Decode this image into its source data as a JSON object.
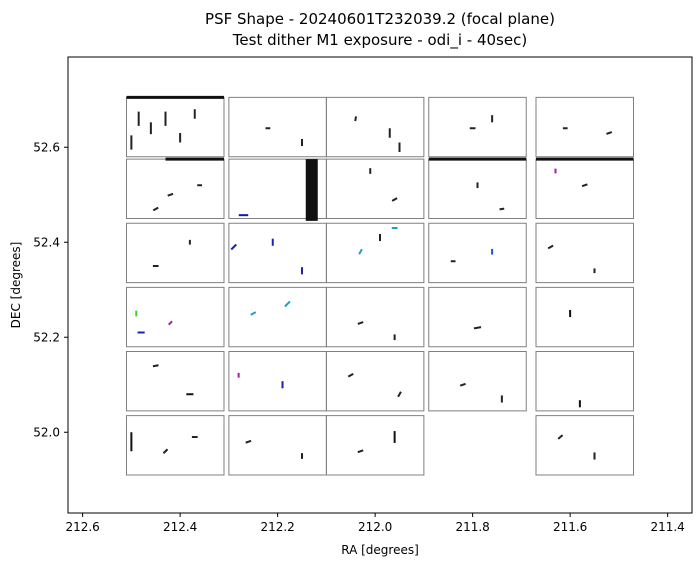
{
  "chart_data": {
    "type": "scatter",
    "title_line1": "PSF Shape - 20240601T232039.2 (focal plane)",
    "title_line2": "Test dither M1 exposure - odi_i - 40sec)",
    "xlabel": "RA [degrees]",
    "ylabel": "DEC [degrees]",
    "xlim": [
      212.63,
      211.35
    ],
    "ylim": [
      51.83,
      52.79
    ],
    "x_inverted": true,
    "grid": false,
    "x_ticks": [
      212.6,
      212.4,
      212.2,
      212.0,
      211.8,
      211.6,
      211.4
    ],
    "x_tick_labels": [
      "212.6",
      "212.4",
      "212.2",
      "212.0",
      "211.8",
      "211.6",
      "211.4"
    ],
    "y_ticks": [
      52.0,
      52.2,
      52.4,
      52.6
    ],
    "y_tick_labels": [
      "52.0",
      "52.2",
      "52.4",
      "52.6"
    ],
    "marker_style": "short line segments (PSF ellipticity whiskers)",
    "detector_color": "#808080",
    "detectors": [
      {
        "ra_left": 212.51,
        "ra_right": 212.31,
        "dec_top": 52.705,
        "dec_bottom": 52.58
      },
      {
        "ra_left": 212.3,
        "ra_right": 212.1,
        "dec_top": 52.705,
        "dec_bottom": 52.58
      },
      {
        "ra_left": 212.1,
        "ra_right": 211.9,
        "dec_top": 52.705,
        "dec_bottom": 52.58
      },
      {
        "ra_left": 211.89,
        "ra_right": 211.69,
        "dec_top": 52.705,
        "dec_bottom": 52.58
      },
      {
        "ra_left": 211.67,
        "ra_right": 211.47,
        "dec_top": 52.705,
        "dec_bottom": 52.58
      },
      {
        "ra_left": 212.51,
        "ra_right": 212.31,
        "dec_top": 52.575,
        "dec_bottom": 52.45
      },
      {
        "ra_left": 212.3,
        "ra_right": 212.1,
        "dec_top": 52.575,
        "dec_bottom": 52.45
      },
      {
        "ra_left": 212.1,
        "ra_right": 211.9,
        "dec_top": 52.575,
        "dec_bottom": 52.45
      },
      {
        "ra_left": 211.89,
        "ra_right": 211.69,
        "dec_top": 52.575,
        "dec_bottom": 52.45
      },
      {
        "ra_left": 211.67,
        "ra_right": 211.47,
        "dec_top": 52.575,
        "dec_bottom": 52.45
      },
      {
        "ra_left": 212.51,
        "ra_right": 212.31,
        "dec_top": 52.44,
        "dec_bottom": 52.315
      },
      {
        "ra_left": 212.3,
        "ra_right": 212.1,
        "dec_top": 52.44,
        "dec_bottom": 52.315
      },
      {
        "ra_left": 212.1,
        "ra_right": 211.9,
        "dec_top": 52.44,
        "dec_bottom": 52.315
      },
      {
        "ra_left": 211.89,
        "ra_right": 211.69,
        "dec_top": 52.44,
        "dec_bottom": 52.315
      },
      {
        "ra_left": 211.67,
        "ra_right": 211.47,
        "dec_top": 52.44,
        "dec_bottom": 52.315
      },
      {
        "ra_left": 212.51,
        "ra_right": 212.31,
        "dec_top": 52.305,
        "dec_bottom": 52.18
      },
      {
        "ra_left": 212.3,
        "ra_right": 212.1,
        "dec_top": 52.305,
        "dec_bottom": 52.18
      },
      {
        "ra_left": 212.1,
        "ra_right": 211.9,
        "dec_top": 52.305,
        "dec_bottom": 52.18
      },
      {
        "ra_left": 211.89,
        "ra_right": 211.69,
        "dec_top": 52.305,
        "dec_bottom": 52.18
      },
      {
        "ra_left": 211.67,
        "ra_right": 211.47,
        "dec_top": 52.305,
        "dec_bottom": 52.18
      },
      {
        "ra_left": 212.51,
        "ra_right": 212.31,
        "dec_top": 52.17,
        "dec_bottom": 52.045
      },
      {
        "ra_left": 212.3,
        "ra_right": 212.1,
        "dec_top": 52.17,
        "dec_bottom": 52.045
      },
      {
        "ra_left": 212.1,
        "ra_right": 211.9,
        "dec_top": 52.17,
        "dec_bottom": 52.045
      },
      {
        "ra_left": 211.89,
        "ra_right": 211.69,
        "dec_top": 52.17,
        "dec_bottom": 52.045
      },
      {
        "ra_left": 211.67,
        "ra_right": 211.47,
        "dec_top": 52.17,
        "dec_bottom": 52.045
      },
      {
        "ra_left": 212.51,
        "ra_right": 212.31,
        "dec_top": 52.035,
        "dec_bottom": 51.91
      },
      {
        "ra_left": 212.3,
        "ra_right": 212.1,
        "dec_top": 52.035,
        "dec_bottom": 51.91
      },
      {
        "ra_left": 212.1,
        "ra_right": 211.9,
        "dec_top": 52.035,
        "dec_bottom": 51.91
      },
      {
        "ra_left": 211.67,
        "ra_right": 211.47,
        "dec_top": 52.035,
        "dec_bottom": 51.91
      }
    ],
    "psf_whiskers": [
      {
        "ra": 212.485,
        "dec": 52.66,
        "angle": 90,
        "len": 0.03,
        "color": "#222222"
      },
      {
        "ra": 212.46,
        "dec": 52.64,
        "angle": 90,
        "len": 0.025,
        "color": "#222222"
      },
      {
        "ra": 212.43,
        "dec": 52.66,
        "angle": 90,
        "len": 0.03,
        "color": "#222222"
      },
      {
        "ra": 212.4,
        "dec": 52.62,
        "angle": 90,
        "len": 0.02,
        "color": "#222222"
      },
      {
        "ra": 212.37,
        "dec": 52.67,
        "angle": 90,
        "len": 0.02,
        "color": "#222222"
      },
      {
        "ra": 212.5,
        "dec": 52.61,
        "angle": 90,
        "len": 0.03,
        "color": "#222222"
      },
      {
        "ra": 212.22,
        "dec": 52.64,
        "angle": 0,
        "len": 0.01,
        "color": "#222222"
      },
      {
        "ra": 212.15,
        "dec": 52.61,
        "angle": 90,
        "len": 0.015,
        "color": "#222222"
      },
      {
        "ra": 212.04,
        "dec": 52.66,
        "angle": 80,
        "len": 0.01,
        "color": "#222222"
      },
      {
        "ra": 211.97,
        "dec": 52.63,
        "angle": 90,
        "len": 0.02,
        "color": "#222222"
      },
      {
        "ra": 211.95,
        "dec": 52.6,
        "angle": 90,
        "len": 0.02,
        "color": "#222222"
      },
      {
        "ra": 211.8,
        "dec": 52.64,
        "angle": 0,
        "len": 0.012,
        "color": "#222222"
      },
      {
        "ra": 211.76,
        "dec": 52.66,
        "angle": 90,
        "len": 0.015,
        "color": "#222222"
      },
      {
        "ra": 211.61,
        "dec": 52.64,
        "angle": 0,
        "len": 0.01,
        "color": "#222222"
      },
      {
        "ra": 211.52,
        "dec": 52.63,
        "angle": 20,
        "len": 0.012,
        "color": "#222222"
      },
      {
        "ra": 212.42,
        "dec": 52.5,
        "angle": 20,
        "len": 0.012,
        "color": "#222222"
      },
      {
        "ra": 212.36,
        "dec": 52.52,
        "angle": 0,
        "len": 0.01,
        "color": "#222222"
      },
      {
        "ra": 212.45,
        "dec": 52.47,
        "angle": 30,
        "len": 0.012,
        "color": "#222222"
      },
      {
        "ra": 212.27,
        "dec": 52.457,
        "angle": 0,
        "len": 0.02,
        "color": "#1a1a9e"
      },
      {
        "ra": 212.13,
        "dec": 52.51,
        "angle": 90,
        "len": 0.13,
        "color": "#111111"
      },
      {
        "ra": 212.01,
        "dec": 52.55,
        "angle": 90,
        "len": 0.012,
        "color": "#222222"
      },
      {
        "ra": 211.96,
        "dec": 52.49,
        "angle": 30,
        "len": 0.012,
        "color": "#222222"
      },
      {
        "ra": 211.79,
        "dec": 52.52,
        "angle": 90,
        "len": 0.012,
        "color": "#222222"
      },
      {
        "ra": 211.74,
        "dec": 52.47,
        "angle": 10,
        "len": 0.01,
        "color": "#222222"
      },
      {
        "ra": 211.57,
        "dec": 52.52,
        "angle": 20,
        "len": 0.012,
        "color": "#222222"
      },
      {
        "ra": 211.63,
        "dec": 52.55,
        "angle": 90,
        "len": 0.01,
        "color": "#a020a0"
      },
      {
        "ra": 212.45,
        "dec": 52.35,
        "angle": 0,
        "len": 0.012,
        "color": "#222222"
      },
      {
        "ra": 212.38,
        "dec": 52.4,
        "angle": 90,
        "len": 0.01,
        "color": "#222222"
      },
      {
        "ra": 212.29,
        "dec": 52.39,
        "angle": 45,
        "len": 0.015,
        "color": "#2020b0"
      },
      {
        "ra": 212.21,
        "dec": 52.4,
        "angle": 90,
        "len": 0.015,
        "color": "#2020b0"
      },
      {
        "ra": 212.15,
        "dec": 52.34,
        "angle": 90,
        "len": 0.015,
        "color": "#2020b0"
      },
      {
        "ra": 212.03,
        "dec": 52.38,
        "angle": 60,
        "len": 0.012,
        "color": "#20a0c0"
      },
      {
        "ra": 211.96,
        "dec": 52.43,
        "angle": 0,
        "len": 0.012,
        "color": "#20a0c0"
      },
      {
        "ra": 211.99,
        "dec": 52.41,
        "angle": 90,
        "len": 0.015,
        "color": "#222222"
      },
      {
        "ra": 211.84,
        "dec": 52.36,
        "angle": 0,
        "len": 0.01,
        "color": "#222222"
      },
      {
        "ra": 211.76,
        "dec": 52.38,
        "angle": 90,
        "len": 0.012,
        "color": "#2050d0"
      },
      {
        "ra": 211.64,
        "dec": 52.39,
        "angle": 30,
        "len": 0.012,
        "color": "#222222"
      },
      {
        "ra": 211.55,
        "dec": 52.34,
        "angle": 90,
        "len": 0.01,
        "color": "#222222"
      },
      {
        "ra": 212.48,
        "dec": 52.21,
        "angle": 0,
        "len": 0.015,
        "color": "#2020b0"
      },
      {
        "ra": 212.49,
        "dec": 52.25,
        "angle": 90,
        "len": 0.012,
        "color": "#40d020"
      },
      {
        "ra": 212.42,
        "dec": 52.23,
        "angle": 45,
        "len": 0.01,
        "color": "#a020a0"
      },
      {
        "ra": 212.25,
        "dec": 52.25,
        "angle": 30,
        "len": 0.012,
        "color": "#20a0c0"
      },
      {
        "ra": 212.18,
        "dec": 52.27,
        "angle": 45,
        "len": 0.015,
        "color": "#20a0c0"
      },
      {
        "ra": 212.03,
        "dec": 52.23,
        "angle": 20,
        "len": 0.012,
        "color": "#222222"
      },
      {
        "ra": 211.96,
        "dec": 52.2,
        "angle": 90,
        "len": 0.012,
        "color": "#222222"
      },
      {
        "ra": 211.79,
        "dec": 52.22,
        "angle": 10,
        "len": 0.015,
        "color": "#222222"
      },
      {
        "ra": 211.6,
        "dec": 52.25,
        "angle": 90,
        "len": 0.015,
        "color": "#111111"
      },
      {
        "ra": 212.45,
        "dec": 52.14,
        "angle": 10,
        "len": 0.012,
        "color": "#222222"
      },
      {
        "ra": 212.38,
        "dec": 52.08,
        "angle": 0,
        "len": 0.015,
        "color": "#111111"
      },
      {
        "ra": 212.28,
        "dec": 52.12,
        "angle": 90,
        "len": 0.01,
        "color": "#a020a0"
      },
      {
        "ra": 212.19,
        "dec": 52.1,
        "angle": 90,
        "len": 0.015,
        "color": "#2020b0"
      },
      {
        "ra": 212.05,
        "dec": 52.12,
        "angle": 30,
        "len": 0.012,
        "color": "#222222"
      },
      {
        "ra": 211.95,
        "dec": 52.08,
        "angle": 60,
        "len": 0.012,
        "color": "#222222"
      },
      {
        "ra": 211.82,
        "dec": 52.1,
        "angle": 20,
        "len": 0.012,
        "color": "#222222"
      },
      {
        "ra": 211.74,
        "dec": 52.07,
        "angle": 90,
        "len": 0.015,
        "color": "#222222"
      },
      {
        "ra": 211.58,
        "dec": 52.06,
        "angle": 90,
        "len": 0.015,
        "color": "#111111"
      },
      {
        "ra": 212.5,
        "dec": 51.98,
        "angle": 90,
        "len": 0.04,
        "color": "#111111"
      },
      {
        "ra": 212.43,
        "dec": 51.96,
        "angle": 45,
        "len": 0.012,
        "color": "#222222"
      },
      {
        "ra": 212.37,
        "dec": 51.99,
        "angle": 0,
        "len": 0.012,
        "color": "#222222"
      },
      {
        "ra": 212.26,
        "dec": 51.98,
        "angle": 20,
        "len": 0.012,
        "color": "#222222"
      },
      {
        "ra": 212.15,
        "dec": 51.95,
        "angle": 90,
        "len": 0.012,
        "color": "#222222"
      },
      {
        "ra": 211.96,
        "dec": 51.99,
        "angle": 90,
        "len": 0.025,
        "color": "#111111"
      },
      {
        "ra": 212.03,
        "dec": 51.96,
        "angle": 20,
        "len": 0.012,
        "color": "#222222"
      },
      {
        "ra": 211.62,
        "dec": 51.99,
        "angle": 40,
        "len": 0.012,
        "color": "#222222"
      },
      {
        "ra": 211.55,
        "dec": 51.95,
        "angle": 90,
        "len": 0.015,
        "color": "#222222"
      }
    ],
    "edge_streaks": [
      {
        "ra_start": 212.51,
        "ra_end": 212.31,
        "dec": 52.705,
        "color": "#111111"
      },
      {
        "ra_start": 212.43,
        "ra_end": 212.31,
        "dec": 52.575,
        "color": "#111111"
      },
      {
        "ra_start": 211.89,
        "ra_end": 211.69,
        "dec": 52.575,
        "color": "#111111"
      },
      {
        "ra_start": 211.67,
        "ra_end": 211.47,
        "dec": 52.575,
        "color": "#111111"
      }
    ]
  }
}
